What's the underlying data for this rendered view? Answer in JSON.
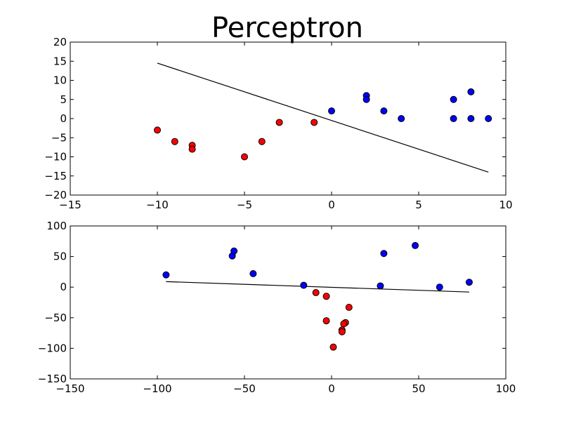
{
  "title": "Perceptron",
  "colors": {
    "class_neg": "#ff0000",
    "class_pos": "#0000ff",
    "line": "#000000",
    "edge": "#000000"
  },
  "chart_data": [
    {
      "type": "scatter",
      "xlim": [
        -15,
        10
      ],
      "ylim": [
        -20,
        20
      ],
      "xticks": [
        -15,
        -10,
        -5,
        0,
        5,
        10
      ],
      "yticks": [
        -20,
        -15,
        -10,
        -5,
        0,
        5,
        10,
        15,
        20
      ],
      "grid": false,
      "legend": "none",
      "series": [
        {
          "color": "#ff0000",
          "points": [
            [
              -10,
              -3
            ],
            [
              -9,
              -6
            ],
            [
              -8,
              -7
            ],
            [
              -8,
              -8
            ],
            [
              -5,
              -10
            ],
            [
              -4,
              -6
            ],
            [
              -3,
              -1
            ],
            [
              -1,
              -1
            ]
          ]
        },
        {
          "color": "#0000ff",
          "points": [
            [
              0,
              2
            ],
            [
              2,
              6
            ],
            [
              2,
              5
            ],
            [
              3,
              2
            ],
            [
              4,
              0
            ],
            [
              7,
              5
            ],
            [
              7,
              0
            ],
            [
              8,
              7
            ],
            [
              8,
              0
            ],
            [
              9,
              0
            ]
          ]
        }
      ],
      "line": {
        "x": [
          -10,
          9
        ],
        "y": [
          14.5,
          -14
        ]
      }
    },
    {
      "type": "scatter",
      "xlim": [
        -150,
        100
      ],
      "ylim": [
        -150,
        100
      ],
      "xticks": [
        -150,
        -100,
        -50,
        0,
        50,
        100
      ],
      "yticks": [
        -150,
        -100,
        -50,
        0,
        50,
        100
      ],
      "grid": false,
      "legend": "none",
      "series": [
        {
          "color": "#ff0000",
          "points": [
            [
              -9,
              -9
            ],
            [
              -3,
              -15
            ],
            [
              -3,
              -55
            ],
            [
              10,
              -33
            ],
            [
              8,
              -58
            ],
            [
              7,
              -60
            ],
            [
              6,
              -70
            ],
            [
              6,
              -73
            ],
            [
              1,
              -98
            ]
          ]
        },
        {
          "color": "#0000ff",
          "points": [
            [
              -95,
              20
            ],
            [
              -57,
              51
            ],
            [
              -56,
              59
            ],
            [
              -45,
              22
            ],
            [
              -16,
              3
            ],
            [
              28,
              2
            ],
            [
              30,
              55
            ],
            [
              48,
              68
            ],
            [
              62,
              0
            ],
            [
              79,
              8
            ]
          ]
        }
      ],
      "line": {
        "x": [
          -95,
          79
        ],
        "y": [
          9,
          -8
        ]
      }
    }
  ]
}
